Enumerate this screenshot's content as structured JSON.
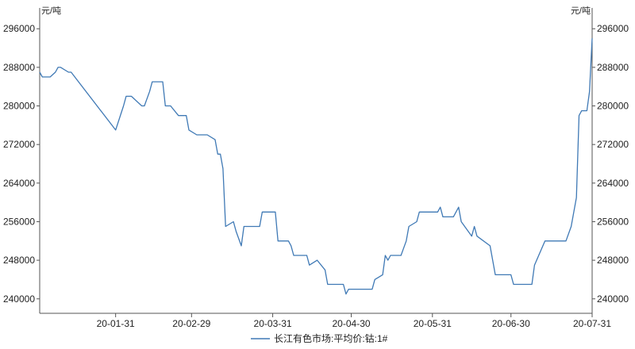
{
  "chart_data": {
    "type": "line",
    "unit_left": "元/吨",
    "unit_right": "元/吨",
    "ylim": [
      237000,
      299000
    ],
    "y_ticks": [
      {
        "value": 296000,
        "label": "296000"
      },
      {
        "value": 288000,
        "label": "288000"
      },
      {
        "value": 280000,
        "label": "280000"
      },
      {
        "value": 272000,
        "label": "272000"
      },
      {
        "value": 264000,
        "label": "264000"
      },
      {
        "value": 256000,
        "label": "256000"
      },
      {
        "value": 248000,
        "label": "248000"
      },
      {
        "value": 240000,
        "label": "240000"
      }
    ],
    "xlim": [
      "2020-01-02",
      "2020-07-31"
    ],
    "x_ticks": [
      {
        "date": "2020-01-31",
        "label": "20-01-31"
      },
      {
        "date": "2020-02-29",
        "label": "20-02-29"
      },
      {
        "date": "2020-03-31",
        "label": "20-03-31"
      },
      {
        "date": "2020-04-30",
        "label": "20-04-30"
      },
      {
        "date": "2020-05-31",
        "label": "20-05-31"
      },
      {
        "date": "2020-06-30",
        "label": "20-06-30"
      },
      {
        "date": "2020-07-31",
        "label": "20-07-31"
      }
    ],
    "grid": false,
    "legend_position": "bottom-center",
    "series": [
      {
        "name": "长江有色市场:平均价:钴:1#",
        "color": "#3f79b5",
        "points": [
          [
            "2020-01-02",
            287000
          ],
          [
            "2020-01-03",
            286000
          ],
          [
            "2020-01-06",
            286000
          ],
          [
            "2020-01-08",
            287000
          ],
          [
            "2020-01-09",
            288000
          ],
          [
            "2020-01-10",
            288000
          ],
          [
            "2020-01-13",
            287000
          ],
          [
            "2020-01-14",
            287000
          ],
          [
            "2020-01-31",
            275000
          ],
          [
            "2020-02-03",
            280000
          ],
          [
            "2020-02-04",
            282000
          ],
          [
            "2020-02-06",
            282000
          ],
          [
            "2020-02-10",
            280000
          ],
          [
            "2020-02-11",
            280000
          ],
          [
            "2020-02-13",
            283000
          ],
          [
            "2020-02-14",
            285000
          ],
          [
            "2020-02-18",
            285000
          ],
          [
            "2020-02-19",
            280000
          ],
          [
            "2020-02-21",
            280000
          ],
          [
            "2020-02-24",
            278000
          ],
          [
            "2020-02-27",
            278000
          ],
          [
            "2020-02-28",
            275000
          ],
          [
            "2020-03-02",
            274000
          ],
          [
            "2020-03-06",
            274000
          ],
          [
            "2020-03-09",
            273000
          ],
          [
            "2020-03-10",
            270000
          ],
          [
            "2020-03-11",
            270000
          ],
          [
            "2020-03-12",
            267000
          ],
          [
            "2020-03-13",
            255000
          ],
          [
            "2020-03-16",
            256000
          ],
          [
            "2020-03-17",
            254000
          ],
          [
            "2020-03-19",
            251000
          ],
          [
            "2020-03-20",
            255000
          ],
          [
            "2020-03-26",
            255000
          ],
          [
            "2020-03-27",
            258000
          ],
          [
            "2020-04-01",
            258000
          ],
          [
            "2020-04-02",
            252000
          ],
          [
            "2020-04-06",
            252000
          ],
          [
            "2020-04-07",
            251000
          ],
          [
            "2020-04-08",
            249000
          ],
          [
            "2020-04-13",
            249000
          ],
          [
            "2020-04-14",
            247000
          ],
          [
            "2020-04-17",
            248000
          ],
          [
            "2020-04-20",
            246000
          ],
          [
            "2020-04-21",
            243000
          ],
          [
            "2020-04-22",
            243000
          ],
          [
            "2020-04-27",
            243000
          ],
          [
            "2020-04-28",
            241000
          ],
          [
            "2020-04-29",
            242000
          ],
          [
            "2020-05-08",
            242000
          ],
          [
            "2020-05-09",
            244000
          ],
          [
            "2020-05-12",
            245000
          ],
          [
            "2020-05-13",
            249000
          ],
          [
            "2020-05-14",
            248000
          ],
          [
            "2020-05-15",
            249000
          ],
          [
            "2020-05-19",
            249000
          ],
          [
            "2020-05-21",
            252000
          ],
          [
            "2020-05-22",
            255000
          ],
          [
            "2020-05-25",
            256000
          ],
          [
            "2020-05-26",
            258000
          ],
          [
            "2020-06-02",
            258000
          ],
          [
            "2020-06-03",
            259000
          ],
          [
            "2020-06-04",
            257000
          ],
          [
            "2020-06-08",
            257000
          ],
          [
            "2020-06-10",
            259000
          ],
          [
            "2020-06-11",
            256000
          ],
          [
            "2020-06-15",
            253000
          ],
          [
            "2020-06-16",
            255000
          ],
          [
            "2020-06-17",
            253000
          ],
          [
            "2020-06-22",
            251000
          ],
          [
            "2020-06-24",
            245000
          ],
          [
            "2020-06-30",
            245000
          ],
          [
            "2020-07-01",
            243000
          ],
          [
            "2020-07-08",
            243000
          ],
          [
            "2020-07-09",
            247000
          ],
          [
            "2020-07-13",
            252000
          ],
          [
            "2020-07-21",
            252000
          ],
          [
            "2020-07-23",
            255000
          ],
          [
            "2020-07-24",
            258000
          ],
          [
            "2020-07-25",
            261000
          ],
          [
            "2020-07-26",
            278000
          ],
          [
            "2020-07-27",
            279000
          ],
          [
            "2020-07-29",
            279000
          ],
          [
            "2020-07-30",
            283000
          ],
          [
            "2020-07-31",
            294000
          ]
        ]
      }
    ]
  }
}
